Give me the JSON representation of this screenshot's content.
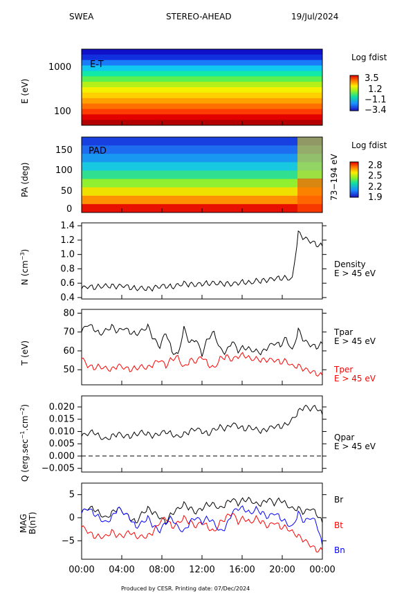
{
  "header": {
    "left": "SWEA",
    "center": "STEREO-AHEAD",
    "right": "19/Jul/2024"
  },
  "footer": "Produced by CESR.   Printing date: 07/Dec/2024",
  "colors": {
    "black": "#000000",
    "red": "#ff0000",
    "blue": "#0000ff"
  },
  "chart_data": [
    {
      "id": "et",
      "type": "heatmap",
      "label": "E-T",
      "ylabel": "E (eV)",
      "yscale": "log",
      "yticks": [
        "1000",
        "100"
      ],
      "colorbar": {
        "title": "Log fdist",
        "ticks": [
          "3.5",
          "1.2",
          "−1.1",
          "−3.4"
        ]
      }
    },
    {
      "id": "pad",
      "type": "heatmap",
      "label": "PAD",
      "ylabel": "PA (deg)",
      "ylim": [
        0,
        180
      ],
      "yticks": [
        "150",
        "100",
        "50",
        "0"
      ],
      "right_label": "73−194 eV",
      "colorbar": {
        "title": "Log fdist",
        "ticks": [
          "2.8",
          "2.5",
          "2.2",
          "1.9"
        ]
      }
    },
    {
      "id": "density",
      "type": "line",
      "ylabel_main": "N (cm",
      "ylabel_sup": "−3",
      "ylabel_end": ")",
      "ylim": [
        0.38,
        1.44
      ],
      "yticks": [
        "1.4",
        "1.2",
        "1.0",
        "0.8",
        "0.6",
        "0.4"
      ],
      "series": [
        {
          "name": "Density",
          "sub": "E > 45 eV",
          "color": "#000000",
          "values": [
            0.52,
            0.55,
            0.54,
            0.56,
            0.57,
            0.56,
            0.55,
            0.56,
            0.54,
            0.53,
            0.54,
            0.52,
            0.53,
            0.55,
            0.56,
            0.55,
            0.58,
            0.6,
            0.58,
            0.57,
            0.59,
            0.6,
            0.61,
            0.6,
            0.59,
            0.58,
            0.6,
            0.62,
            0.61,
            0.64,
            0.63,
            0.64,
            0.66,
            0.67,
            0.68,
            0.66,
            1.3,
            1.22,
            1.18,
            1.14,
            1.12
          ]
        }
      ]
    },
    {
      "id": "temp",
      "type": "line",
      "ylabel": "T (eV)",
      "ylim": [
        42,
        82
      ],
      "yticks": [
        "80",
        "70",
        "60",
        "50"
      ],
      "series": [
        {
          "name": "Tpar",
          "sub": "E > 45 eV",
          "color": "#000000",
          "values": [
            70,
            74,
            72,
            69,
            71,
            73,
            70,
            72,
            70,
            69,
            71,
            73,
            66,
            62,
            70,
            60,
            58,
            72,
            64,
            66,
            58,
            67,
            70,
            61,
            59,
            65,
            60,
            62,
            61,
            60,
            59,
            62,
            64,
            63,
            67,
            60,
            71,
            65,
            63,
            62,
            64
          ]
        },
        {
          "name": "Tper",
          "sub": "E > 45 eV",
          "color": "#ff0000",
          "values": [
            56,
            52,
            51,
            52,
            51,
            50,
            52,
            51,
            50,
            51,
            52,
            51,
            53,
            55,
            52,
            56,
            57,
            51,
            55,
            54,
            57,
            53,
            51,
            56,
            57,
            55,
            57,
            58,
            56,
            56,
            55,
            55,
            55,
            54,
            55,
            52,
            52,
            50,
            49,
            48,
            47
          ]
        }
      ]
    },
    {
      "id": "heatflux",
      "type": "line",
      "ylabel_main": "Q (erg.sec",
      "ylabel_sup1": "−1",
      "ylabel_mid": ".cm",
      "ylabel_sup2": "−2",
      "ylabel_end": ")",
      "ylim": [
        -0.0065,
        0.0245
      ],
      "yticks": [
        "0.020",
        "0.015",
        "0.010",
        "0.005",
        "0.000",
        "−0.005"
      ],
      "reference_line": 0,
      "series": [
        {
          "name": "Qpar",
          "sub": "E > 45 eV",
          "color": "#000000",
          "values": [
            0.008,
            0.009,
            0.01,
            0.008,
            0.007,
            0.008,
            0.009,
            0.008,
            0.008,
            0.009,
            0.01,
            0.009,
            0.008,
            0.009,
            0.01,
            0.009,
            0.008,
            0.009,
            0.01,
            0.011,
            0.01,
            0.009,
            0.011,
            0.012,
            0.011,
            0.013,
            0.012,
            0.011,
            0.012,
            0.011,
            0.01,
            0.011,
            0.012,
            0.012,
            0.013,
            0.015,
            0.018,
            0.02,
            0.019,
            0.02,
            0.017
          ]
        }
      ]
    },
    {
      "id": "mag",
      "type": "line",
      "ylabel_top": "MAG",
      "ylabel_bottom": "B(nT)",
      "ylim": [
        -9,
        7.5
      ],
      "yticks": [
        "5",
        "0",
        "−5"
      ],
      "series": [
        {
          "name": "Br",
          "color": "#000000",
          "values": [
            1,
            2,
            2,
            1,
            0,
            1,
            2,
            1,
            0,
            -1,
            1,
            2,
            1,
            0,
            -1,
            1,
            2,
            3,
            2,
            1,
            2,
            3,
            3,
            2,
            3,
            4,
            3,
            4,
            4,
            3,
            3,
            4,
            3,
            4,
            3,
            2,
            2,
            1,
            2,
            1,
            -1
          ]
        },
        {
          "name": "Bt",
          "color": "#ff0000",
          "values": [
            -2,
            -3,
            -4,
            -4,
            -4,
            -3,
            -4,
            -4,
            -3,
            -4,
            -4,
            -4,
            -3,
            -1,
            0,
            -2,
            -1,
            0,
            -1,
            -2,
            -1,
            -2,
            -3,
            -1,
            0,
            1,
            -1,
            0,
            -1,
            0,
            -1,
            -2,
            -1,
            -2,
            -2,
            -3,
            -4,
            -5,
            -6,
            -7,
            -7
          ]
        },
        {
          "name": "Bn",
          "color": "#0000ff",
          "values": [
            1,
            2,
            1,
            0,
            -1,
            0,
            2,
            1,
            0,
            -2,
            -1,
            0,
            -2,
            -3,
            -1,
            0,
            -2,
            -3,
            -1,
            0,
            -1,
            0,
            -1,
            -3,
            -2,
            1,
            2,
            2,
            1,
            2,
            1,
            0,
            1,
            0,
            -1,
            -2,
            1,
            -1,
            0,
            -1,
            -6
          ]
        }
      ]
    }
  ],
  "time_axis": {
    "ticks": [
      "00:00",
      "04:00",
      "08:00",
      "12:00",
      "16:00",
      "20:00",
      "00:00"
    ]
  }
}
